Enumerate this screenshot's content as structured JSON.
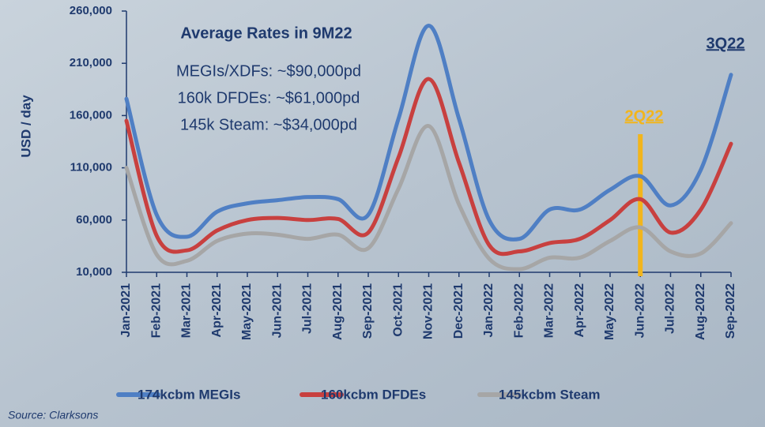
{
  "chart_data": {
    "type": "line",
    "y_axis_label": "USD / day",
    "annotations": [
      "Average Rates in 9M22",
      "MEGIs/XDFs: ~$90,000pd",
      "160k DFDEs: ~$61,000pd",
      "145k Steam: ~$34,000pd",
      "3Q22",
      "2Q22"
    ],
    "source": "Source: Clarksons",
    "categories": [
      "Jan-2021",
      "Feb-2021",
      "Mar-2021",
      "Apr-2021",
      "May-2021",
      "Jun-2021",
      "Jul-2021",
      "Aug-2021",
      "Sep-2021",
      "Oct-2021",
      "Nov-2021",
      "Dec-2021",
      "Jan-2022",
      "Feb-2022",
      "Mar-2022",
      "Apr-2022",
      "May-2022",
      "Jun-2022",
      "Jul-2022",
      "Aug-2022",
      "Sep-2022"
    ],
    "series": [
      {
        "name": "174kcbm MEGIs",
        "color": "#4f7fc4",
        "values": [
          176000,
          65000,
          44000,
          68000,
          76000,
          79000,
          82000,
          80000,
          65000,
          157000,
          246000,
          157000,
          60000,
          42000,
          70000,
          70000,
          89000,
          102000,
          74000,
          108000,
          199000
        ]
      },
      {
        "name": "160kcbm DFDEs",
        "color": "#c8403f",
        "values": [
          155000,
          45000,
          31000,
          50000,
          60000,
          62000,
          60000,
          61000,
          48000,
          120000,
          195000,
          115000,
          36000,
          30000,
          38000,
          42000,
          60000,
          80000,
          48000,
          70000,
          133000
        ]
      },
      {
        "name": "145kcbm Steam",
        "color": "#a6a6a6",
        "values": [
          110000,
          27000,
          21000,
          40000,
          47000,
          46000,
          42000,
          46000,
          33000,
          90000,
          150000,
          75000,
          23000,
          13000,
          24000,
          24000,
          40000,
          53000,
          30000,
          28000,
          57000
        ]
      }
    ],
    "ylim": [
      10000,
      260000
    ],
    "yticks": [
      {
        "value": 10000,
        "label": "10,000"
      },
      {
        "value": 60000,
        "label": "60,000"
      },
      {
        "value": 110000,
        "label": "110,000"
      },
      {
        "value": 160000,
        "label": "160,000"
      },
      {
        "value": 210000,
        "label": "210,000"
      },
      {
        "value": 260000,
        "label": "260,000"
      }
    ],
    "annotation_color": "#f2b51c"
  }
}
